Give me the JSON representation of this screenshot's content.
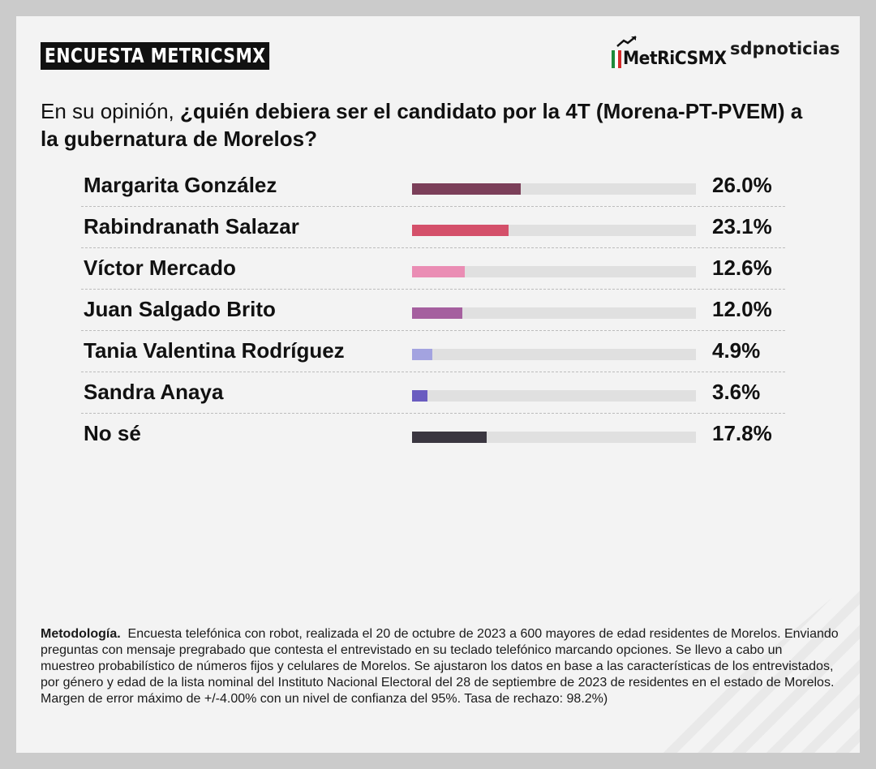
{
  "header": {
    "tag": "ENCUESTA METRICSMX",
    "logo_metrics": "MetRiCSMX",
    "logo_sdp": "sdpnoticias"
  },
  "question": {
    "lead": "En su opinión, ",
    "bold": "¿quién debiera ser el candidato por la 4T (Morena-PT-PVEM) a la gubernatura de Morelos?"
  },
  "chart_data": {
    "type": "bar",
    "orientation": "horizontal",
    "title": "En su opinión, ¿quién debiera ser el candidato por la 4T (Morena-PT-PVEM) a la gubernatura de Morelos?",
    "xlim": [
      0,
      100
    ],
    "grid": false,
    "categories": [
      "Margarita González",
      "Rabindranath Salazar",
      "Víctor Mercado",
      "Juan Salgado Brito",
      "Tania Valentina Rodríguez",
      "Sandra Anaya",
      "No sé"
    ],
    "values": [
      26.0,
      23.1,
      12.6,
      12.0,
      4.9,
      3.6,
      17.8
    ],
    "labels": [
      "26.0%",
      "23.1%",
      "12.6%",
      "12.0%",
      "4.9%",
      "3.6%",
      "17.8%"
    ],
    "colors": [
      "#7b3f59",
      "#d4506a",
      "#ea8db4",
      "#a55f9f",
      "#a3a3e0",
      "#6a5cc0",
      "#3a3640"
    ]
  },
  "methodology": {
    "label": "Metodología.",
    "text": "Encuesta telefónica con robot, realizada el 20 de octubre de 2023 a 600 mayores de edad residentes de Morelos. Enviando preguntas con mensaje pregrabado que contesta el entrevistado en su teclado telefónico marcando opciones. Se llevo a cabo un muestreo probabilístico de números fijos y celulares de Morelos. Se ajustaron los datos en base a las características de los entrevistados, por género y edad de la lista nominal del Instituto Nacional Electoral del 28 de septiembre de 2023 de residentes en el estado de Morelos. Margen de error máximo de +/-4.00% con un nivel de confianza del 95%. Tasa de rechazo: 98.2%)"
  }
}
